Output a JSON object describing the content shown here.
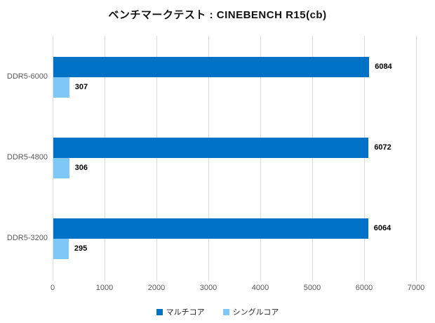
{
  "title": "ベンチマークテスト : CINEBENCH R15(cb)",
  "chart_data": {
    "type": "bar",
    "orientation": "horizontal",
    "title": "ベンチマークテスト : CINEBENCH R15(cb)",
    "categories": [
      "DDR5-6000",
      "DDR5-4800",
      "DDR5-3200"
    ],
    "series": [
      {
        "name": "マルチコア",
        "color": "#0072C6",
        "values": [
          6084,
          6072,
          6064
        ]
      },
      {
        "name": "シングルコア",
        "color": "#7EC8F7",
        "values": [
          307,
          306,
          295
        ]
      }
    ],
    "xlabel": "",
    "ylabel": "",
    "xlim": [
      0,
      7000
    ],
    "xticks": [
      0,
      1000,
      2000,
      3000,
      4000,
      5000,
      6000,
      7000
    ],
    "grid": true,
    "gridline_color": "#D9D9D9",
    "tick_label_color": "#595959",
    "value_label_color": "#000000",
    "legend_position": "bottom"
  }
}
